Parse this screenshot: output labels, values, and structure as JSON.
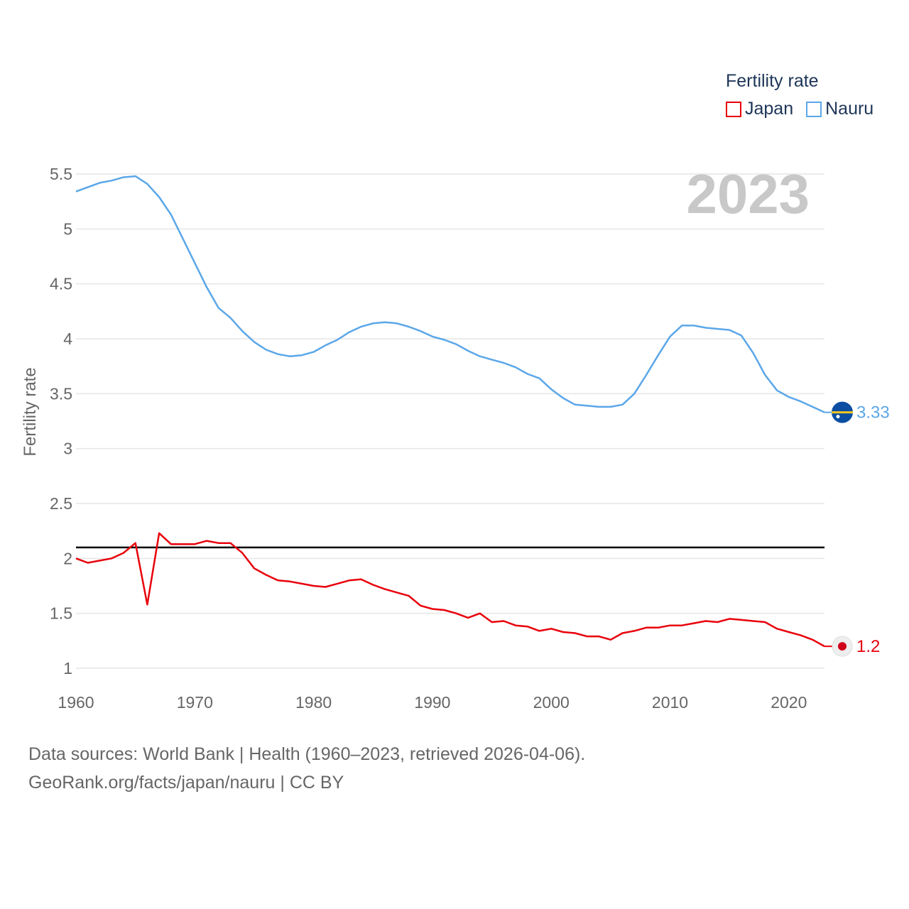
{
  "chart_data": {
    "type": "line",
    "ylabel": "Fertility rate",
    "xlabel": "",
    "xlim": [
      1960,
      2023
    ],
    "ylim": [
      1,
      5.5
    ],
    "x_ticks": [
      1960,
      1970,
      1980,
      1990,
      2000,
      2010,
      2020
    ],
    "y_ticks": [
      "1",
      "1.5",
      "2",
      "2.5",
      "3",
      "3.5",
      "4",
      "4.5",
      "5",
      "5.5"
    ],
    "current_year": "2023",
    "reference_line": {
      "value": 2.1,
      "color": "#000000"
    },
    "legend": {
      "title": "Fertility rate",
      "position": "top-right"
    },
    "x": [
      1960,
      1961,
      1962,
      1963,
      1964,
      1965,
      1966,
      1967,
      1968,
      1969,
      1970,
      1971,
      1972,
      1973,
      1974,
      1975,
      1976,
      1977,
      1978,
      1979,
      1980,
      1981,
      1982,
      1983,
      1984,
      1985,
      1986,
      1987,
      1988,
      1989,
      1990,
      1991,
      1992,
      1993,
      1994,
      1995,
      1996,
      1997,
      1998,
      1999,
      2000,
      2001,
      2002,
      2003,
      2004,
      2005,
      2006,
      2007,
      2008,
      2009,
      2010,
      2011,
      2012,
      2013,
      2014,
      2015,
      2016,
      2017,
      2018,
      2019,
      2020,
      2021,
      2022,
      2023
    ],
    "series": [
      {
        "name": "Japan",
        "color": "#e8000b",
        "end_label": "1.2",
        "values": [
          2.0,
          1.96,
          1.98,
          2.0,
          2.05,
          2.14,
          1.58,
          2.23,
          2.13,
          2.13,
          2.13,
          2.16,
          2.14,
          2.14,
          2.05,
          1.91,
          1.85,
          1.8,
          1.79,
          1.77,
          1.75,
          1.74,
          1.77,
          1.8,
          1.81,
          1.76,
          1.72,
          1.69,
          1.66,
          1.57,
          1.54,
          1.53,
          1.5,
          1.46,
          1.5,
          1.42,
          1.43,
          1.39,
          1.38,
          1.34,
          1.36,
          1.33,
          1.32,
          1.29,
          1.29,
          1.26,
          1.32,
          1.34,
          1.37,
          1.37,
          1.39,
          1.39,
          1.41,
          1.43,
          1.42,
          1.45,
          1.44,
          1.43,
          1.42,
          1.36,
          1.33,
          1.3,
          1.26,
          1.2
        ]
      },
      {
        "name": "Nauru",
        "color": "#5ba7e8",
        "end_label": "3.33",
        "values": [
          5.34,
          5.38,
          5.42,
          5.44,
          5.47,
          5.48,
          5.41,
          5.29,
          5.13,
          4.91,
          4.69,
          4.47,
          4.28,
          4.19,
          4.07,
          3.97,
          3.9,
          3.86,
          3.84,
          3.85,
          3.88,
          3.94,
          3.99,
          4.06,
          4.11,
          4.14,
          4.15,
          4.14,
          4.11,
          4.07,
          4.02,
          3.99,
          3.95,
          3.89,
          3.84,
          3.81,
          3.78,
          3.74,
          3.68,
          3.64,
          3.54,
          3.46,
          3.4,
          3.39,
          3.38,
          3.38,
          3.4,
          3.5,
          3.67,
          3.85,
          4.02,
          4.12,
          4.12,
          4.1,
          4.09,
          4.08,
          4.03,
          3.87,
          3.67,
          3.53,
          3.47,
          3.43,
          3.38,
          3.33
        ]
      }
    ]
  },
  "legend": {
    "title": "Fertility rate",
    "items": [
      {
        "label": "Japan",
        "color": "#e8000b"
      },
      {
        "label": "Nauru",
        "color": "#5ba7e8"
      }
    ]
  },
  "flags": {
    "japan": "japan-flag-icon",
    "nauru": "nauru-flag-icon"
  },
  "footer": {
    "line1": "Data sources: World Bank | Health (1960–2023, retrieved 2026-04-06).",
    "line2": "GeoRank.org/facts/japan/nauru | CC BY"
  }
}
